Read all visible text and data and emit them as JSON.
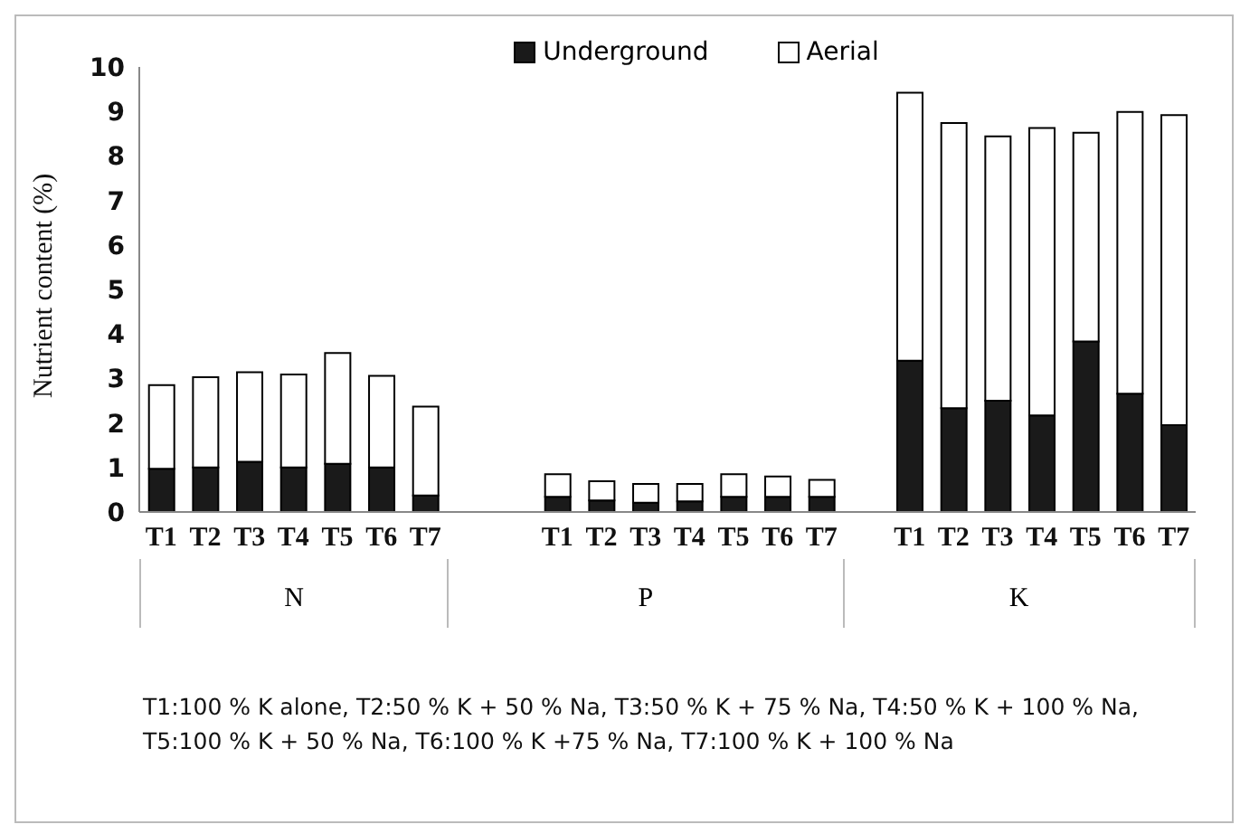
{
  "chart_data": {
    "type": "bar",
    "stacked": true,
    "ylabel": "Nutrient content (%)",
    "categories": [
      "T1",
      "T2",
      "T3",
      "T4",
      "T5",
      "T6",
      "T7",
      null,
      null,
      "T1",
      "T2",
      "T3",
      "T4",
      "T5",
      "T6",
      "T7",
      null,
      "T1",
      "T2",
      "T3",
      "T4",
      "T5",
      "T6",
      "T7"
    ],
    "series": [
      {
        "name": "Underground",
        "color": "#1a1a1a",
        "values": [
          0.97,
          1.0,
          1.13,
          1.0,
          1.08,
          1.0,
          0.37,
          null,
          null,
          0.34,
          0.26,
          0.21,
          0.24,
          0.34,
          0.34,
          0.34,
          null,
          3.4,
          2.33,
          2.5,
          2.17,
          3.83,
          2.66,
          1.95
        ]
      },
      {
        "name": "Aerial",
        "color": "#ffffff",
        "values": [
          1.88,
          2.03,
          2.01,
          2.09,
          2.49,
          2.06,
          2.0,
          null,
          null,
          0.51,
          0.43,
          0.42,
          0.39,
          0.51,
          0.46,
          0.38,
          null,
          6.02,
          6.41,
          5.94,
          6.46,
          4.69,
          6.33,
          6.97
        ]
      }
    ],
    "ylim": [
      0,
      10
    ],
    "yticks": [
      0,
      1,
      2,
      3,
      4,
      5,
      6,
      7,
      8,
      9,
      10
    ],
    "grid": false,
    "legend": "top",
    "annotations": [
      "N",
      "P",
      "K",
      "T1:100 % K alone, T2:50 % K + 50 % Na, T3:50 % K + 75 % Na, T4:50 % K + 100 % Na, T5:100 % K + 50 % Na, T6:100 % K +75 % Na, T7:100 % K + 100 % Na"
    ]
  }
}
